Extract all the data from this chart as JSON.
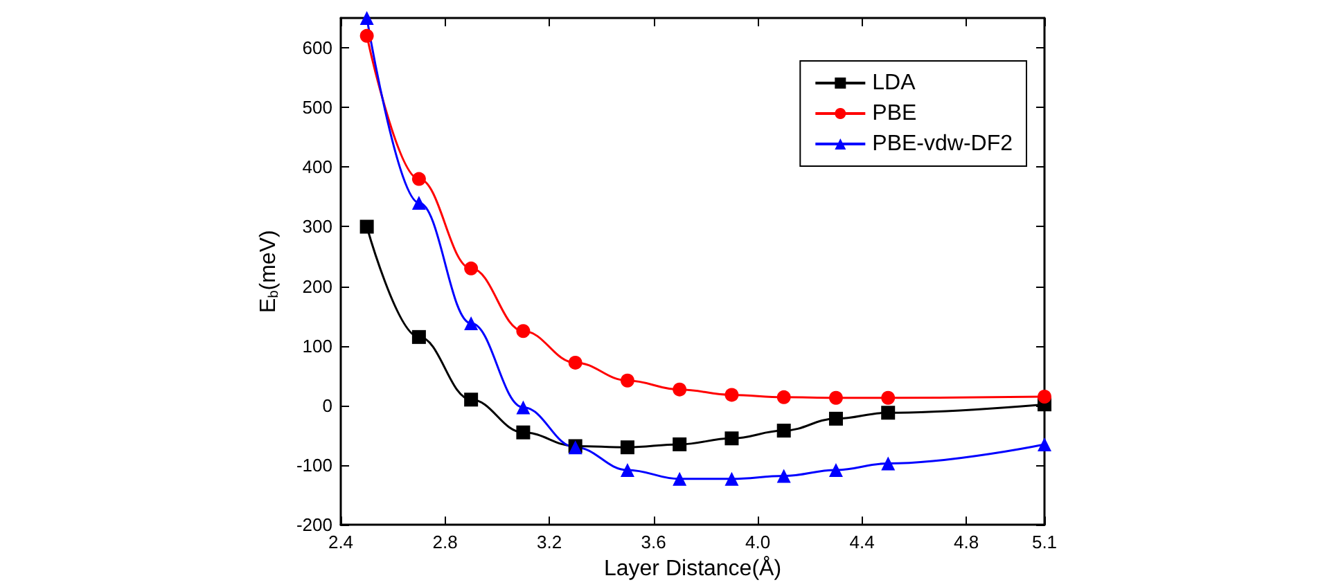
{
  "chart_data": {
    "type": "line",
    "xlabel": "Layer Distance(Å)",
    "ylabel": "E$_{b}$(meV)",
    "xlim": [
      2.4,
      5.1
    ],
    "ylim": [
      -200,
      650
    ],
    "xticks": [
      2.4,
      2.8,
      3.2,
      3.6,
      {
        "value": 4,
        "label": "4.0"
      },
      4.4,
      4.8,
      5.1
    ],
    "yticks": [
      -200,
      -100,
      0,
      100,
      200,
      300,
      400,
      500,
      600
    ],
    "grid": false,
    "legend": "top right",
    "line_style": "solid",
    "series": [
      {
        "name": "LDA",
        "color": "#000000",
        "marker": "square",
        "x": [
          2.5,
          2.7,
          2.9,
          3.1,
          3.3,
          3.5,
          3.7,
          3.9,
          4.1,
          4.3,
          4.5,
          5.1
        ],
        "values": [
          300,
          115,
          10,
          -45,
          -68,
          -70,
          -65,
          -55,
          -42,
          -22,
          -12,
          2
        ]
      },
      {
        "name": "PBE",
        "color": "#ff0000",
        "marker": "circle",
        "x": [
          2.5,
          2.7,
          2.9,
          3.1,
          3.3,
          3.5,
          3.7,
          3.9,
          4.1,
          4.3,
          4.5,
          5.1
        ],
        "values": [
          620,
          380,
          230,
          125,
          72,
          42,
          27,
          18,
          14,
          13,
          13,
          15
        ]
      },
      {
        "name": "PBE-vdw-DF2",
        "color": "#0000ff",
        "marker": "triangle",
        "x": [
          2.5,
          2.7,
          2.9,
          3.1,
          3.3,
          3.5,
          3.7,
          3.9,
          4.1,
          4.3,
          4.5,
          5.1
        ],
        "values": [
          650,
          340,
          138,
          -3,
          -70,
          -108,
          -123,
          -123,
          -118,
          -108,
          -97,
          -65
        ]
      }
    ]
  }
}
